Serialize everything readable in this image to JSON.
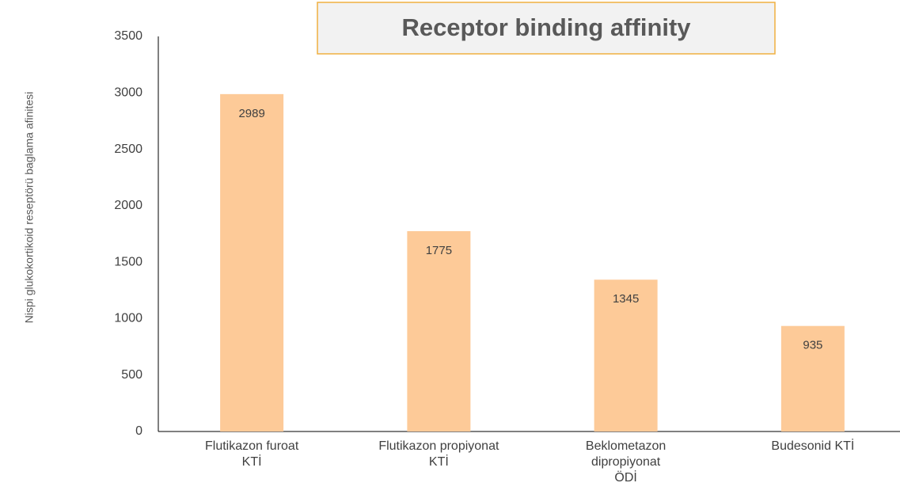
{
  "chart_data": {
    "type": "bar",
    "title": "Receptor binding affinity",
    "y_label": "Nispi glukokortikoid reseptörü baglama afinitesi",
    "categories": [
      "Flutikazon furoat\nKTİ",
      "Flutikazon propiyonat\nKTİ",
      "Beklometazon\ndipropiyonat\nÖDİ",
      "Budesonid KTİ"
    ],
    "values": [
      2989,
      1775,
      1345,
      935
    ],
    "color": "#fdca98",
    "ylim": [
      0,
      3500
    ],
    "yticks": [
      0,
      500,
      1000,
      1500,
      2000,
      2500,
      3000,
      3500
    ],
    "grid": false
  }
}
